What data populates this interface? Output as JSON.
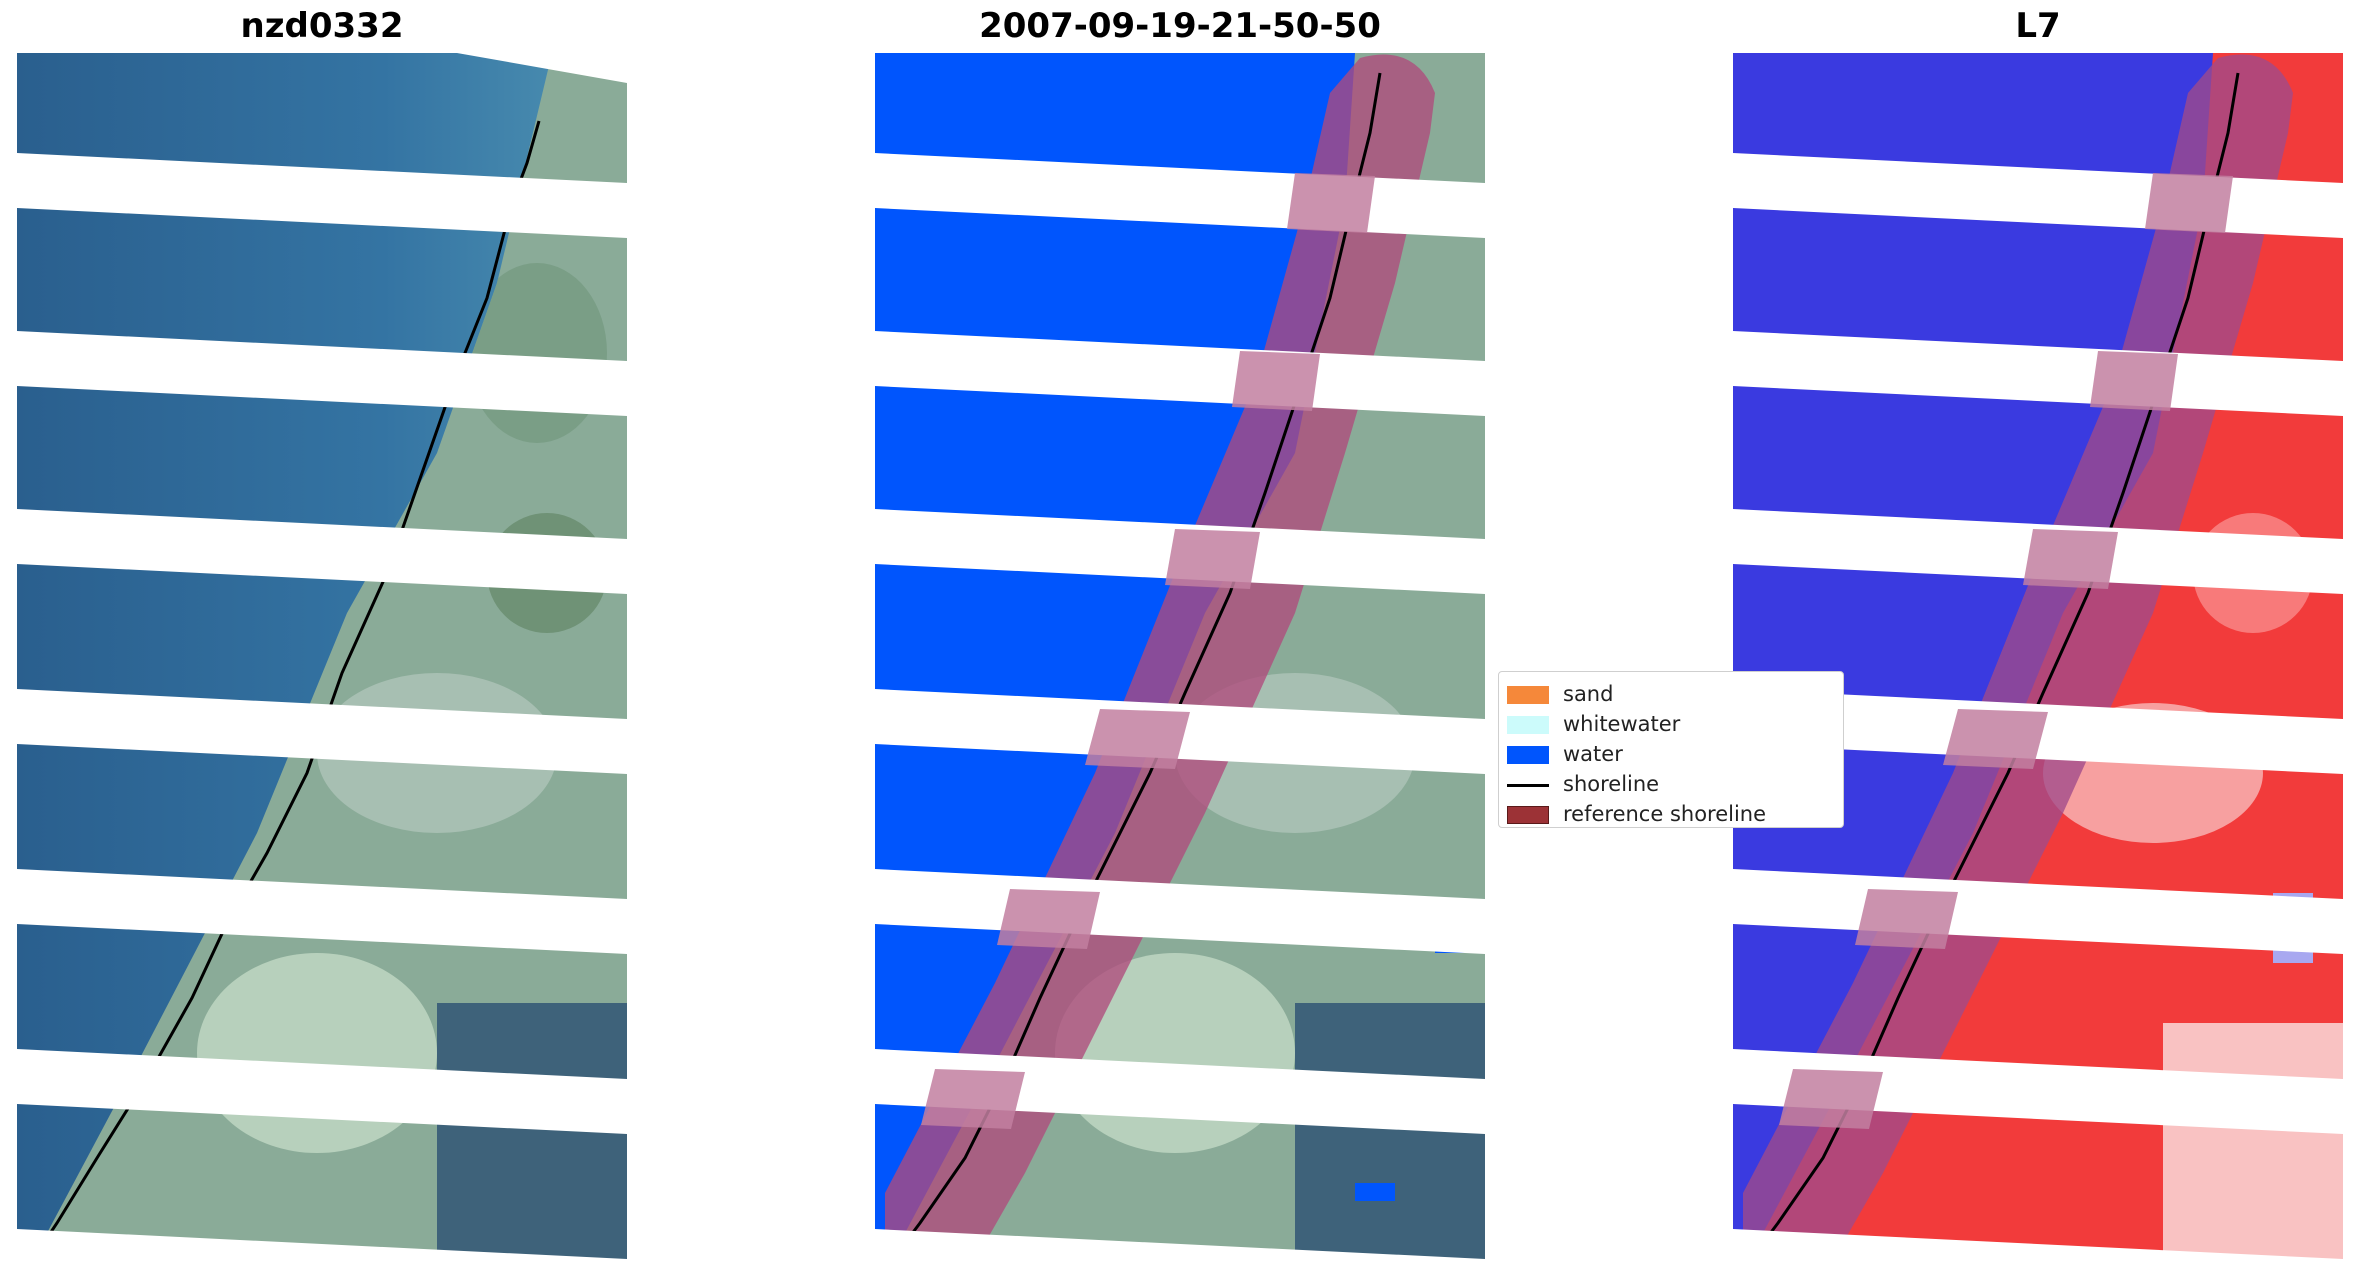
{
  "panels": [
    {
      "title": "nzd0332",
      "type": "rgb"
    },
    {
      "title": "2007-09-19-21-50-50",
      "type": "classified"
    },
    {
      "title": "L7",
      "type": "index"
    }
  ],
  "legend": {
    "items": [
      {
        "label": "sand",
        "color": "#f5883a",
        "kind": "patch"
      },
      {
        "label": "whitewater",
        "color": "#ccfbfb",
        "kind": "patch"
      },
      {
        "label": "water",
        "color": "#0055fd",
        "kind": "patch"
      },
      {
        "label": "shoreline",
        "color": "#000000",
        "kind": "line"
      },
      {
        "label": "reference shoreline",
        "color": "#9c3236",
        "kind": "patch"
      }
    ]
  },
  "colors": {
    "sea": "#2f6a9a",
    "land": "#8fae9e",
    "water_class": "#0055fd",
    "buffer": "#b04a7c",
    "index_water": "#3a3ae0",
    "index_land": "#f23b3b"
  }
}
